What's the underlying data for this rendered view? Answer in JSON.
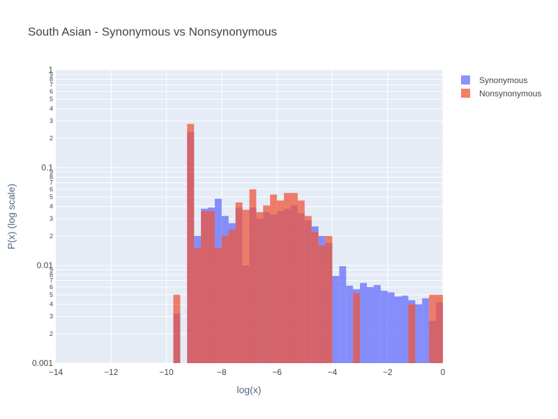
{
  "chart_data": {
    "type": "bar",
    "title": "South Asian - Synonymous vs Nonsynonymous",
    "xlabel": "log(x)",
    "ylabel": "P(x) (log scale)",
    "xlim": [
      -14,
      0
    ],
    "ylim": [
      0.001,
      1
    ],
    "y_scale": "log",
    "barmode": "overlay",
    "bin_width": 0.25,
    "x_ticks": [
      "−14",
      "−12",
      "−10",
      "−8",
      "−6",
      "−4",
      "−2",
      "0"
    ],
    "x_tick_values": [
      -14,
      -12,
      -10,
      -8,
      -6,
      -4,
      -2,
      0
    ],
    "y_major_ticks": [
      "0.001",
      "0.01",
      "0.1",
      "1"
    ],
    "y_major_tick_values": [
      0.001,
      0.01,
      0.1,
      1
    ],
    "y_minor_digits": [
      "2",
      "3",
      "4",
      "5",
      "6",
      "7",
      "8",
      "9"
    ],
    "legend": {
      "position": "top-right"
    },
    "series": [
      {
        "name": "Synonymous",
        "color": "#636efa",
        "opacity": 0.75,
        "bins": [
          [
            -9.75,
            0.0032
          ],
          [
            -9.25,
            0.23
          ],
          [
            -9.0,
            0.02
          ],
          [
            -8.75,
            0.038
          ],
          [
            -8.5,
            0.039
          ],
          [
            -8.25,
            0.048
          ],
          [
            -8.0,
            0.032
          ],
          [
            -7.75,
            0.027
          ],
          [
            -7.5,
            0.039
          ],
          [
            -7.25,
            0.01
          ],
          [
            -7.0,
            0.039
          ],
          [
            -6.75,
            0.03
          ],
          [
            -6.5,
            0.035
          ],
          [
            -6.25,
            0.033
          ],
          [
            -6.0,
            0.036
          ],
          [
            -5.75,
            0.038
          ],
          [
            -5.5,
            0.041
          ],
          [
            -5.25,
            0.034
          ],
          [
            -5.0,
            0.029
          ],
          [
            -4.75,
            0.025
          ],
          [
            -4.5,
            0.02
          ],
          [
            -4.25,
            0.017
          ],
          [
            -4.0,
            0.0078
          ],
          [
            -3.75,
            0.0098
          ],
          [
            -3.5,
            0.0062
          ],
          [
            -3.25,
            0.0057
          ],
          [
            -3.0,
            0.0066
          ],
          [
            -2.75,
            0.006
          ],
          [
            -2.5,
            0.0063
          ],
          [
            -2.25,
            0.0055
          ],
          [
            -2.0,
            0.0053
          ],
          [
            -1.75,
            0.0048
          ],
          [
            -1.5,
            0.0049
          ],
          [
            -1.25,
            0.0044
          ],
          [
            -1.0,
            0.004
          ],
          [
            -0.75,
            0.0046
          ],
          [
            -0.5,
            0.0027
          ],
          [
            -0.25,
            0.0042
          ]
        ]
      },
      {
        "name": "Nonsynonymous",
        "color": "#ef553b",
        "opacity": 0.75,
        "bins": [
          [
            -9.75,
            0.005
          ],
          [
            -9.25,
            0.28
          ],
          [
            -9.0,
            0.015
          ],
          [
            -8.75,
            0.036
          ],
          [
            -8.5,
            0.036
          ],
          [
            -8.25,
            0.015
          ],
          [
            -8.0,
            0.02
          ],
          [
            -7.75,
            0.023
          ],
          [
            -7.5,
            0.044
          ],
          [
            -7.25,
            0.037
          ],
          [
            -7.0,
            0.06
          ],
          [
            -6.75,
            0.035
          ],
          [
            -6.5,
            0.041
          ],
          [
            -6.25,
            0.053
          ],
          [
            -6.0,
            0.046
          ],
          [
            -5.75,
            0.055
          ],
          [
            -5.5,
            0.055
          ],
          [
            -5.25,
            0.046
          ],
          [
            -5.0,
            0.032
          ],
          [
            -4.75,
            0.022
          ],
          [
            -4.5,
            0.016
          ],
          [
            -4.25,
            0.02
          ],
          [
            -4.0,
            0.0
          ],
          [
            -3.75,
            0.0
          ],
          [
            -3.5,
            0.0
          ],
          [
            -3.25,
            0.0052
          ],
          [
            -3.0,
            0.0
          ],
          [
            -2.75,
            0.0
          ],
          [
            -2.5,
            0.0
          ],
          [
            -2.25,
            0.0
          ],
          [
            -2.0,
            0.0
          ],
          [
            -1.75,
            0.0
          ],
          [
            -1.5,
            0.0
          ],
          [
            -1.25,
            0.004
          ],
          [
            -1.0,
            0.0
          ],
          [
            -0.75,
            0.0
          ],
          [
            -0.5,
            0.005
          ],
          [
            -0.25,
            0.005
          ]
        ]
      }
    ]
  },
  "colors": {
    "plot_background": "#e5ecf6",
    "grid": "#ffffff",
    "text": "#444444",
    "axis_title": "#506784"
  }
}
